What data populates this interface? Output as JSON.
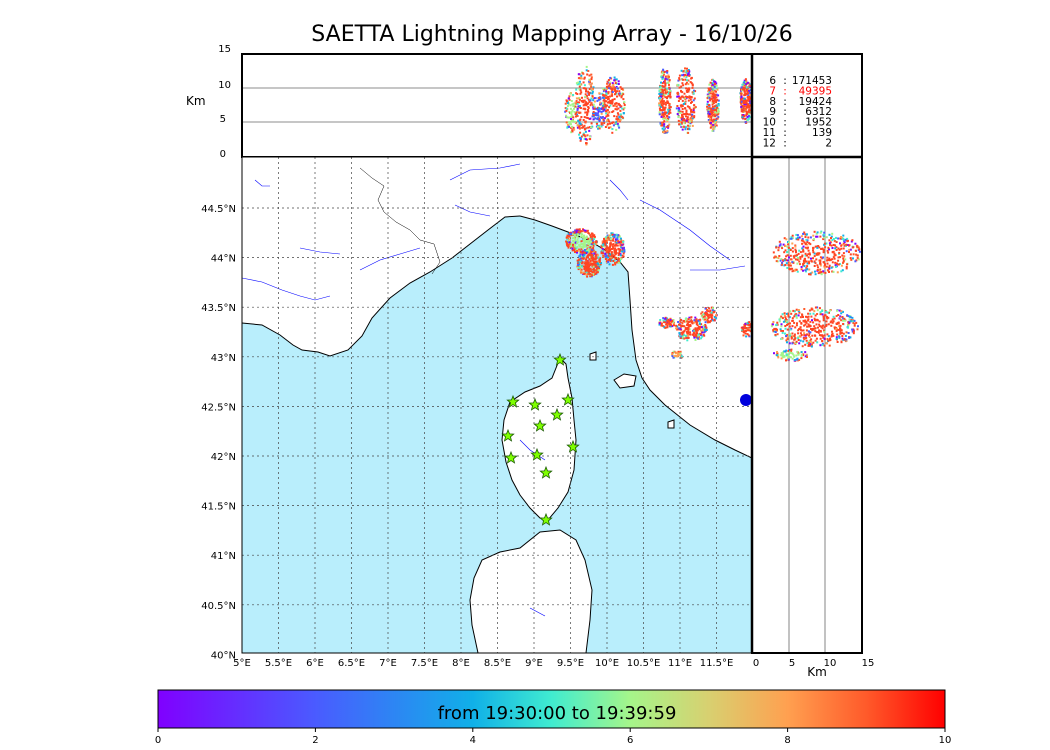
{
  "title": "SAETTA Lightning Mapping Array - 16/10/26",
  "top_panel": {
    "y_unit": "Km",
    "y_ticks": [
      "15",
      "10",
      "5",
      "0"
    ]
  },
  "side_panel": {
    "x_unit": "Km",
    "x_ticks": [
      "0",
      "5",
      "10",
      "15"
    ]
  },
  "map": {
    "lon_ticks": [
      "5°E",
      "5.5°E",
      "6°E",
      "6.5°E",
      "7°E",
      "7.5°E",
      "8°E",
      "8.5°E",
      "9°E",
      "9.5°E",
      "10°E",
      "10.5°E",
      "11°E",
      "11.5°E"
    ],
    "lat_ticks": [
      "44.5°N",
      "44°N",
      "43.5°N",
      "43°N",
      "42.5°N",
      "42°N",
      "41.5°N",
      "41°N",
      "40.5°N",
      "40°N"
    ],
    "sea_color": "#b9eefc",
    "land_color": "#ffffff",
    "river_color": "#0000ff",
    "station_icon": "star-icon",
    "station_color": "#7fff00"
  },
  "station_counts": [
    {
      "stations": "6",
      "count": "171453",
      "highlight": false
    },
    {
      "stations": "7",
      "count": "49395",
      "highlight": true
    },
    {
      "stations": "8",
      "count": "19424",
      "highlight": false
    },
    {
      "stations": "9",
      "count": "6312",
      "highlight": false
    },
    {
      "stations": "10",
      "count": "1952",
      "highlight": false
    },
    {
      "stations": "11",
      "count": "139",
      "highlight": false
    },
    {
      "stations": "12",
      "count": "2",
      "highlight": false
    }
  ],
  "colorbar": {
    "label": "from 19:30:00 to 19:39:59",
    "ticks": [
      "0",
      "2",
      "4",
      "6",
      "8",
      "10"
    ]
  }
}
